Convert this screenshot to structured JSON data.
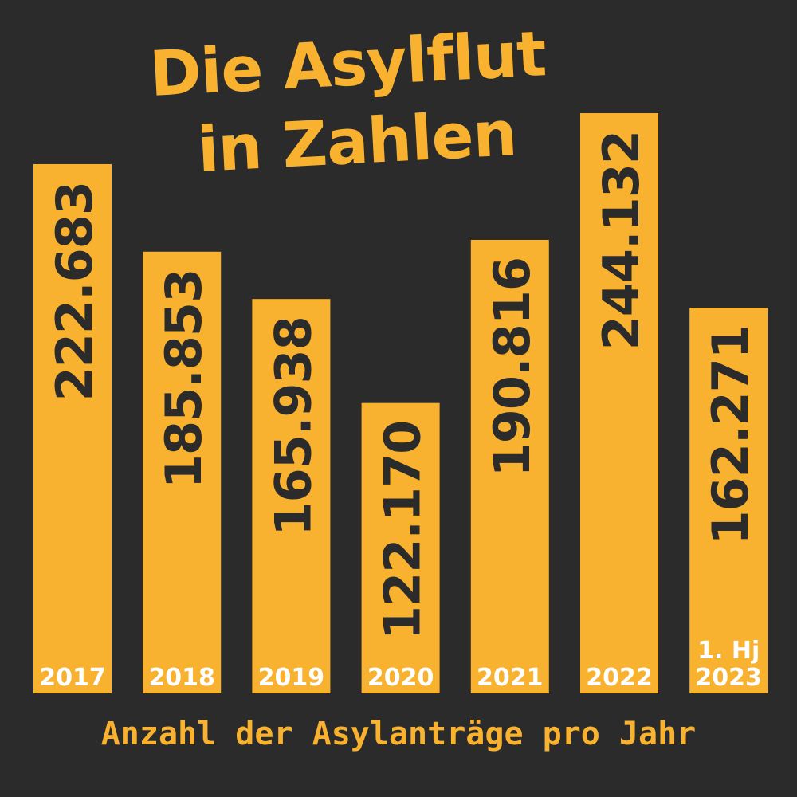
{
  "title": {
    "line1": "Die Asylflut",
    "line2": "in Zahlen"
  },
  "footer": "Anzahl der Asylanträge pro Jahr",
  "colors": {
    "background": "#2b2b2b",
    "bar": "#f8b230",
    "bar_value_text": "#2b2b2b",
    "category_text": "#ffffff",
    "title_text": "#f8b230"
  },
  "chart_data": {
    "type": "bar",
    "title": "Die Asylflut in Zahlen",
    "xlabel": "",
    "ylabel": "Anzahl der Asylanträge pro Jahr",
    "categories": [
      "2017",
      "2018",
      "2019",
      "2020",
      "2021",
      "2022",
      "1. Hj 2023"
    ],
    "category_lines": [
      [
        "2017"
      ],
      [
        "2018"
      ],
      [
        "2019"
      ],
      [
        "2020"
      ],
      [
        "2021"
      ],
      [
        "2022"
      ],
      [
        "1. Hj",
        "2023"
      ]
    ],
    "values": [
      222683,
      185853,
      165938,
      122170,
      190816,
      244132,
      162271
    ],
    "value_labels": [
      "222.683",
      "185.853",
      "165.938",
      "122.170",
      "190.816",
      "244.132",
      "162.271"
    ],
    "grid": false,
    "legend": "none"
  }
}
